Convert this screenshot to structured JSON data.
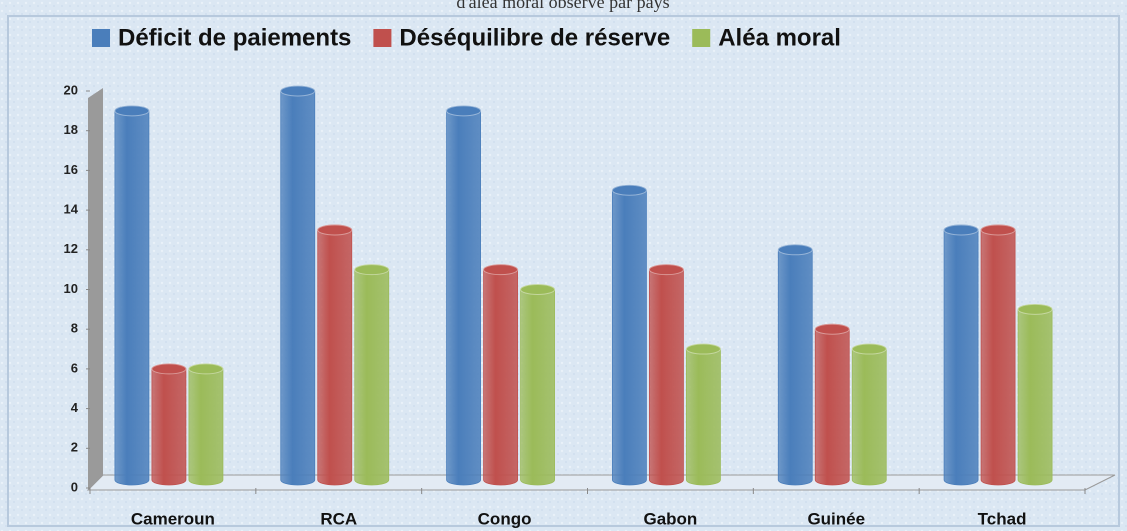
{
  "chart_data": {
    "type": "bar",
    "title": "d'aléa moral observé par pays",
    "categories": [
      "Cameroun",
      "RCA",
      "Congo",
      "Gabon",
      "Guinée",
      "Tchad"
    ],
    "series": [
      {
        "name": "Déficit de paiements",
        "color": "#4a7ebb",
        "values": [
          19,
          20,
          19,
          15,
          12,
          13
        ]
      },
      {
        "name": "Déséquilibre de réserve",
        "color": "#c0504d",
        "values": [
          6,
          13,
          11,
          11,
          8,
          13
        ]
      },
      {
        "name": "Aléa moral",
        "color": "#9bbb59",
        "values": [
          6,
          11,
          10,
          7,
          7,
          9
        ]
      }
    ],
    "ylim": [
      0,
      20
    ],
    "yticks": [
      0,
      2,
      4,
      6,
      8,
      10,
      12,
      14,
      16,
      18,
      20
    ],
    "legend": "top"
  }
}
